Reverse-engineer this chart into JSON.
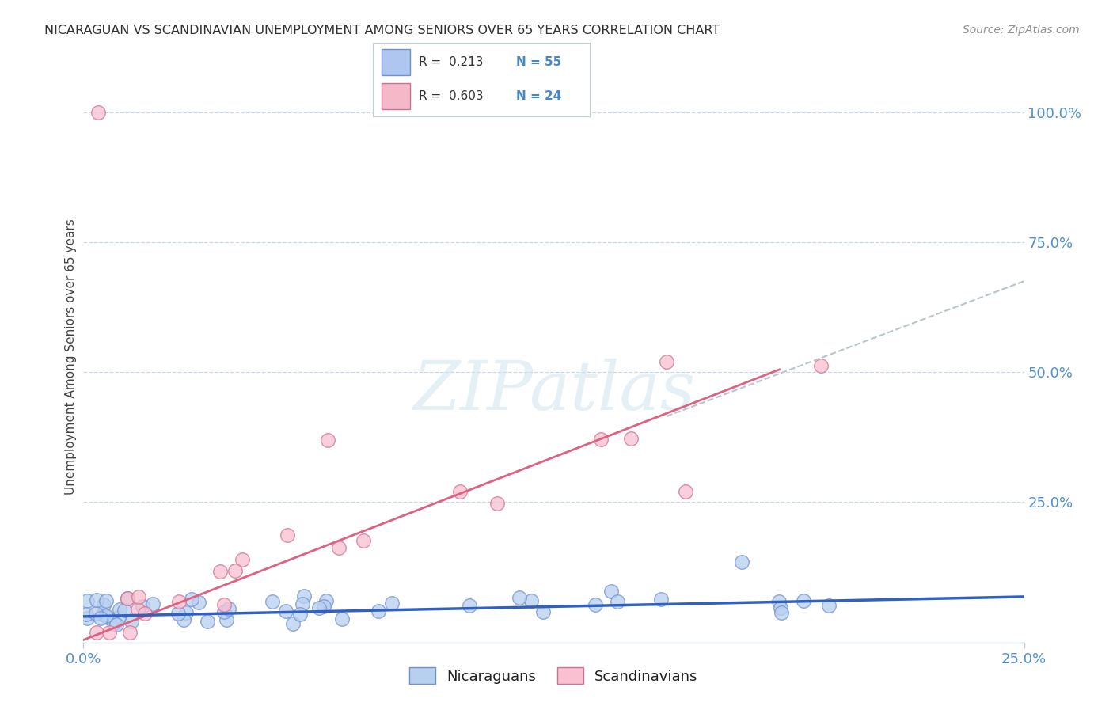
{
  "title": "NICARAGUAN VS SCANDINAVIAN UNEMPLOYMENT AMONG SENIORS OVER 65 YEARS CORRELATION CHART",
  "source": "Source: ZipAtlas.com",
  "ylabel": "Unemployment Among Seniors over 65 years",
  "xlim": [
    0.0,
    0.25
  ],
  "ylim": [
    -0.02,
    1.08
  ],
  "legend_color1": "#aec6f0",
  "legend_color2": "#f5b8c8",
  "nic_scatter_color": "#b8d0f0",
  "scan_scatter_color": "#f8c0d0",
  "nic_line_color": "#3060c0",
  "scan_line_color": "#e06080",
  "scan_ext_color": "#b8c4cc",
  "background_color": "#ffffff",
  "grid_color": "#c8d8e8",
  "title_color": "#303030",
  "source_color": "#909090",
  "axis_label_color": "#5090d0",
  "watermark_color": "#d0e4f0",
  "legend_box_color": "#c0c8d0",
  "nic_edge_color": "#7090d0",
  "scan_edge_color": "#d07090"
}
